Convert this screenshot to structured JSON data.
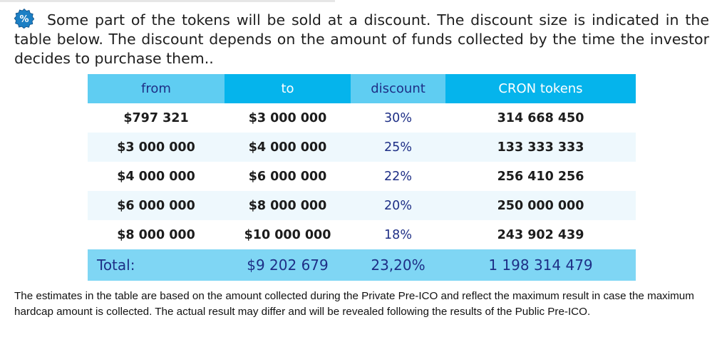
{
  "intro": {
    "text": "Some part of the tokens will be sold at a discount. The discount size is indicated in the table below. The discount depends on the amount of funds collected by the time the investor decides to purchase them.."
  },
  "colors": {
    "header_light": "#5fcdf2",
    "header_dark": "#05b4ec",
    "total_row": "#7fd6f4",
    "alt_row": "#eef8fd",
    "accent_text": "#1e2f86"
  },
  "table": {
    "headers": [
      "from",
      "to",
      "discount",
      "CRON tokens"
    ],
    "rows": [
      {
        "from": "$797 321",
        "to": "$3 000 000",
        "discount": "30%",
        "tokens": "314 668 450"
      },
      {
        "from": "$3 000 000",
        "to": "$4 000 000",
        "discount": "25%",
        "tokens": "133 333 333"
      },
      {
        "from": "$4 000 000",
        "to": "$6 000 000",
        "discount": "22%",
        "tokens": "256 410 256"
      },
      {
        "from": "$6 000 000",
        "to": "$8 000 000",
        "discount": "20%",
        "tokens": "250 000 000"
      },
      {
        "from": "$8 000 000",
        "to": "$10 000 000",
        "discount": "18%",
        "tokens": "243 902 439"
      }
    ],
    "total": {
      "label": "Total:",
      "amount": "$9 202 679",
      "discount": "23,20%",
      "tokens": "1 198 314 479"
    }
  },
  "note": {
    "text": "The estimates in the table are based on the amount collected during the Private Pre-ICO and reflect the maximum result in case the maximum hardcap amount is collected. The actual result may differ and will be revealed following the results of the Public Pre-ICO."
  }
}
